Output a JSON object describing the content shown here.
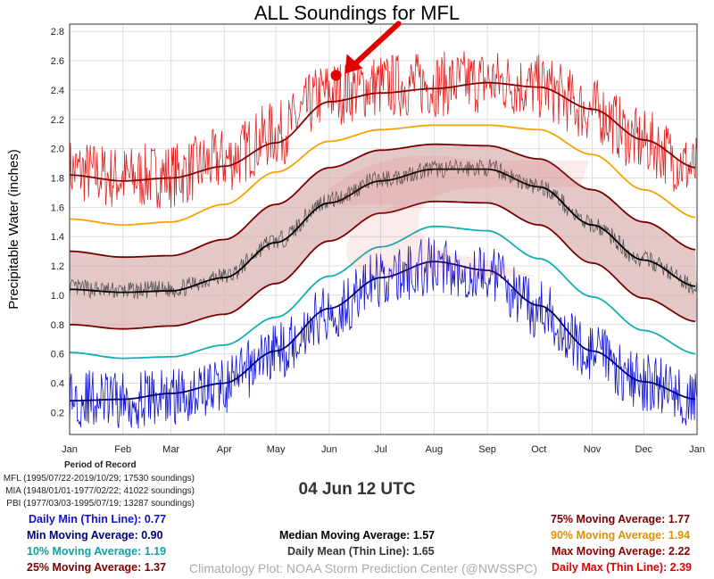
{
  "title": "ALL Soundings for MFL",
  "date_label": "04 Jun 12 UTC",
  "period_of_record": {
    "heading": "Period of Record",
    "lines": [
      "MFL (1995/07/22-2019/10/29; 17530 soundings)",
      "MIA (1948/01/01-1977/02/22; 41022 soundings)",
      "PBI (1977/03/03-1995/07/19; 13287 soundings)"
    ]
  },
  "stats": {
    "daily_min": "Daily Min (Thin Line): 0.77",
    "min_moving": "Min Moving Average: 0.90",
    "p10_moving": "10% Moving Average: 1.19",
    "p25_moving": "25% Moving Average: 1.37",
    "median_moving": "Median Moving Average: 1.57",
    "daily_mean": "Daily Mean (Thin Line): 1.65",
    "p75_moving": "75% Moving Average: 1.77",
    "p90_moving": "90% Moving Average: 1.94",
    "max_moving": "Max Moving Average: 2.22",
    "daily_max": "Daily Max (Thin Line): 2.39"
  },
  "credit": "Climatology Plot: NOAA Storm Prediction Center (@NWSSPC)",
  "colors": {
    "max": "#e02020",
    "max_avg": "#8b0000",
    "p90": "#f5a300",
    "p75": "#7a0000",
    "median": "#000000",
    "mean": "#555555",
    "p25": "#7a0000",
    "band": "#d8b0b0",
    "p10": "#10b0b0",
    "min": "#1010d0",
    "min_avg": "#000080",
    "marker": "#e00000"
  },
  "chart_data": {
    "type": "line",
    "ylabel": "Precipitable Water (inches)",
    "ylim": [
      0.05,
      2.85
    ],
    "yticks": [
      "0.2",
      "0.4",
      "0.6",
      "0.8",
      "1.0",
      "1.2",
      "1.4",
      "1.6",
      "1.8",
      "2.0",
      "2.2",
      "2.4",
      "2.6",
      "2.8"
    ],
    "xlim": [
      0,
      365
    ],
    "months": [
      "Jan",
      "Feb",
      "Mar",
      "Apr",
      "May",
      "Jun",
      "Jul",
      "Aug",
      "Sep",
      "Oct",
      "Nov",
      "Dec",
      "Jan"
    ],
    "grid": true,
    "x_doy": [
      0,
      31,
      59,
      90,
      120,
      151,
      181,
      212,
      243,
      273,
      304,
      334,
      365
    ],
    "series": [
      {
        "name": "Max Moving Average",
        "values": [
          1.82,
          1.78,
          1.8,
          1.88,
          2.04,
          2.32,
          2.38,
          2.41,
          2.45,
          2.42,
          2.27,
          2.06,
          1.87
        ]
      },
      {
        "name": "90% Moving Average",
        "values": [
          1.52,
          1.48,
          1.5,
          1.62,
          1.84,
          2.05,
          2.13,
          2.16,
          2.16,
          2.13,
          1.96,
          1.72,
          1.53
        ]
      },
      {
        "name": "75% Moving Average",
        "values": [
          1.3,
          1.26,
          1.27,
          1.38,
          1.62,
          1.87,
          1.99,
          2.03,
          2.02,
          1.93,
          1.72,
          1.5,
          1.31
        ]
      },
      {
        "name": "Median Moving Average",
        "values": [
          1.04,
          1.02,
          1.03,
          1.12,
          1.36,
          1.63,
          1.78,
          1.86,
          1.86,
          1.74,
          1.48,
          1.24,
          1.06
        ]
      },
      {
        "name": "25% Moving Average",
        "values": [
          0.8,
          0.77,
          0.79,
          0.87,
          1.08,
          1.37,
          1.56,
          1.64,
          1.63,
          1.48,
          1.22,
          0.98,
          0.82
        ]
      },
      {
        "name": "10% Moving Average",
        "values": [
          0.61,
          0.57,
          0.58,
          0.66,
          0.85,
          1.13,
          1.33,
          1.47,
          1.44,
          1.25,
          0.99,
          0.76,
          0.6
        ]
      },
      {
        "name": "Min Moving Average",
        "values": [
          0.28,
          0.29,
          0.33,
          0.4,
          0.62,
          0.91,
          1.12,
          1.23,
          1.17,
          0.93,
          0.62,
          0.41,
          0.29
        ]
      },
      {
        "name": "Daily Max (Thin Line)",
        "values": [
          1.85,
          1.8,
          1.82,
          1.92,
          2.1,
          2.38,
          2.43,
          2.44,
          2.46,
          2.42,
          2.26,
          2.04,
          1.86
        ]
      },
      {
        "name": "Daily Mean (Thin Line)",
        "values": [
          1.05,
          1.03,
          1.04,
          1.13,
          1.37,
          1.65,
          1.79,
          1.86,
          1.87,
          1.74,
          1.48,
          1.24,
          1.06
        ]
      },
      {
        "name": "Daily Min (Thin Line)",
        "values": [
          0.3,
          0.28,
          0.31,
          0.39,
          0.62,
          0.88,
          1.1,
          1.2,
          1.15,
          0.9,
          0.6,
          0.4,
          0.3
        ]
      }
    ],
    "marker": {
      "x": 155,
      "y": 2.5,
      "label": "04 Jun 12 UTC"
    }
  }
}
